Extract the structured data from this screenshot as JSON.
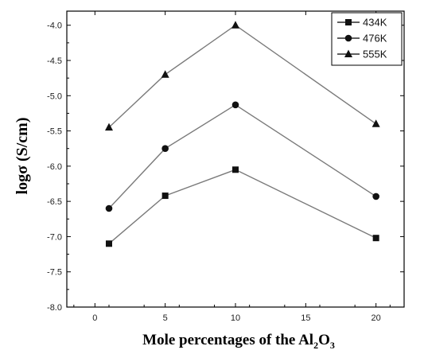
{
  "chart_data": {
    "type": "line",
    "xlabel_parts": [
      "Mole percentages of the Al",
      "2",
      "O",
      "3"
    ],
    "ylabel": "logσ (S/cm)",
    "xlim": [
      -2,
      22
    ],
    "ylim": [
      -8.0,
      -3.8
    ],
    "x_ticks": [
      0,
      5,
      10,
      15,
      20
    ],
    "y_ticks": [
      -4.0,
      -4.5,
      -5.0,
      -5.5,
      -6.0,
      -6.5,
      -7.0,
      -7.5,
      -8.0
    ],
    "y_tick_labels": [
      "-4.0",
      "-4.5",
      "-5.0",
      "-5.5",
      "-6.0",
      "-6.5",
      "-7.0",
      "-7.5",
      "-8.0"
    ],
    "legend_position": "top-right",
    "grid": false,
    "x": [
      1,
      5,
      10,
      20
    ],
    "series": [
      {
        "name": "434K",
        "marker": "square",
        "values": [
          -7.1,
          -6.42,
          -6.05,
          -7.02
        ]
      },
      {
        "name": "476K",
        "marker": "circle",
        "values": [
          -6.6,
          -5.75,
          -5.13,
          -6.43
        ]
      },
      {
        "name": "555K",
        "marker": "triangle",
        "values": [
          -5.45,
          -4.7,
          -4.0,
          -5.4
        ]
      }
    ],
    "line_color": "#7a7a7a",
    "marker_color": "#111111"
  }
}
